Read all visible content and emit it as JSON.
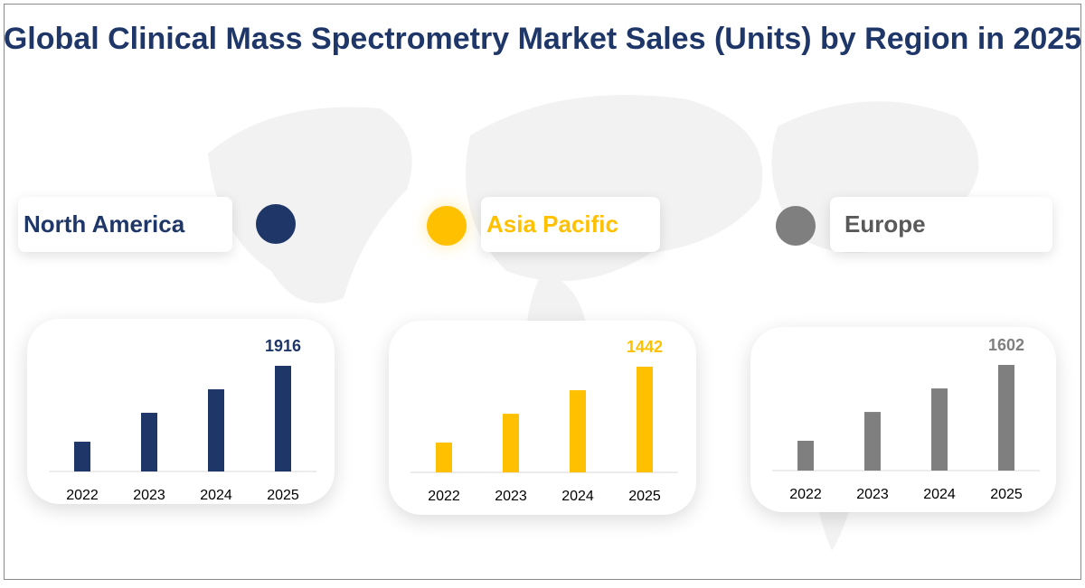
{
  "title": "Global Clinical Mass Spectrometry Market Sales (Units) by Region in 2025",
  "chart_data": [
    {
      "type": "bar",
      "region": "North America",
      "color": "#1f3768",
      "categories": [
        "2022",
        "2023",
        "2024",
        "2025"
      ],
      "values": [
        540,
        1064,
        1490,
        1916
      ],
      "labeled_value": "1916"
    },
    {
      "type": "bar",
      "region": "Asia Pacific",
      "color": "#ffc000",
      "categories": [
        "2022",
        "2023",
        "2024",
        "2025"
      ],
      "values": [
        407,
        800,
        1121,
        1442
      ],
      "labeled_value": "1442"
    },
    {
      "type": "bar",
      "region": "Europe",
      "color": "#7f7f7f",
      "categories": [
        "2022",
        "2023",
        "2024",
        "2025"
      ],
      "values": [
        452,
        889,
        1245,
        1602
      ],
      "labeled_value": "1602"
    }
  ]
}
